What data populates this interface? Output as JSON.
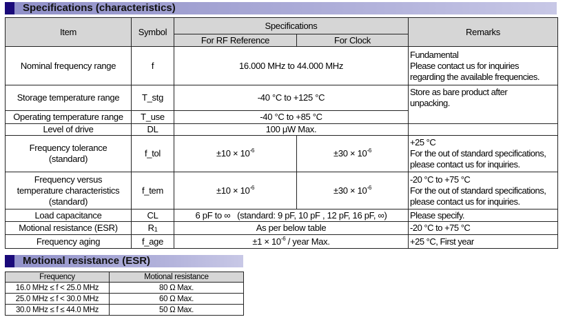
{
  "section1": {
    "title": "Specifications (characteristics)"
  },
  "spec_table": {
    "headers": {
      "item": "Item",
      "symbol": "Symbol",
      "specifications": "Specifications",
      "rf": "For RF Reference",
      "clock": "For Clock",
      "remarks": "Remarks"
    },
    "rows": [
      {
        "item": "Nominal frequency range",
        "symbol": "f",
        "value": "16.000 MHz to 44.000 MHz",
        "remarks": [
          "Fundamental",
          "Please contact us for inquiries",
          "regarding the available frequencies."
        ]
      },
      {
        "item": "Storage temperature range",
        "symbol": "T_stg",
        "value": "-40 °C to +125 °C",
        "remarks": [
          "Store as bare product after",
          "unpacking."
        ]
      },
      {
        "item": "Operating temperature range",
        "symbol": "T_use",
        "value": "-40 °C to +85 °C"
      },
      {
        "item": "Level of drive",
        "symbol": "DL",
        "value": "100 μW Max."
      },
      {
        "item": [
          "Frequency tolerance",
          "(standard)"
        ],
        "symbol": "f_tol",
        "rf": "±10 × 10",
        "rf_exp": "-6",
        "clock": "±30 × 10",
        "clock_exp": "-6",
        "remarks": [
          "+25 °C",
          "For the out of standard specifications,",
          "please contact us for inquiries."
        ]
      },
      {
        "item": [
          "Frequency versus",
          "temperature characteristics",
          "(standard)"
        ],
        "symbol": "f_tem",
        "rf": "±10 × 10",
        "rf_exp": "-6",
        "clock": "±30 × 10",
        "clock_exp": "-6",
        "remarks": [
          "-20 °C to +75 °C",
          "For the out of standard specifications,",
          "please contact us for inquiries."
        ]
      },
      {
        "item": "Load capacitance",
        "symbol": "CL",
        "value": "6 pF to ∞   (standard: 9 pF, 10 pF , 12 pF, 16 pF, ∞)",
        "remarks": "Please specify."
      },
      {
        "item": "Motional resistance (ESR)",
        "symbol": "R",
        "symbol_sub": "1",
        "value": "As per below table",
        "remarks": "-20 °C to +75 °C"
      },
      {
        "item": "Frequency aging",
        "symbol": "f_age",
        "value": "±1 × 10",
        "value_exp": "-6",
        "value_suffix": " / year Max.",
        "remarks": "+25 °C, First year"
      }
    ]
  },
  "section2": {
    "title": "Motional resistance (ESR)"
  },
  "esr_table": {
    "headers": [
      "Frequency",
      "Motional resistance"
    ],
    "rows": [
      [
        "16.0 MHz ≤ f < 25.0 MHz",
        "80 Ω Max."
      ],
      [
        "25.0 MHz ≤ f < 30.0 MHz",
        "60 Ω Max."
      ],
      [
        "30.0 MHz ≤ f ≤ 44.0 MHz",
        "50 Ω Max."
      ]
    ]
  },
  "colors": {
    "section_square": "#1a0a7a",
    "section_bar": "#b4b4dc",
    "header_bg": "#d6d6d6"
  }
}
